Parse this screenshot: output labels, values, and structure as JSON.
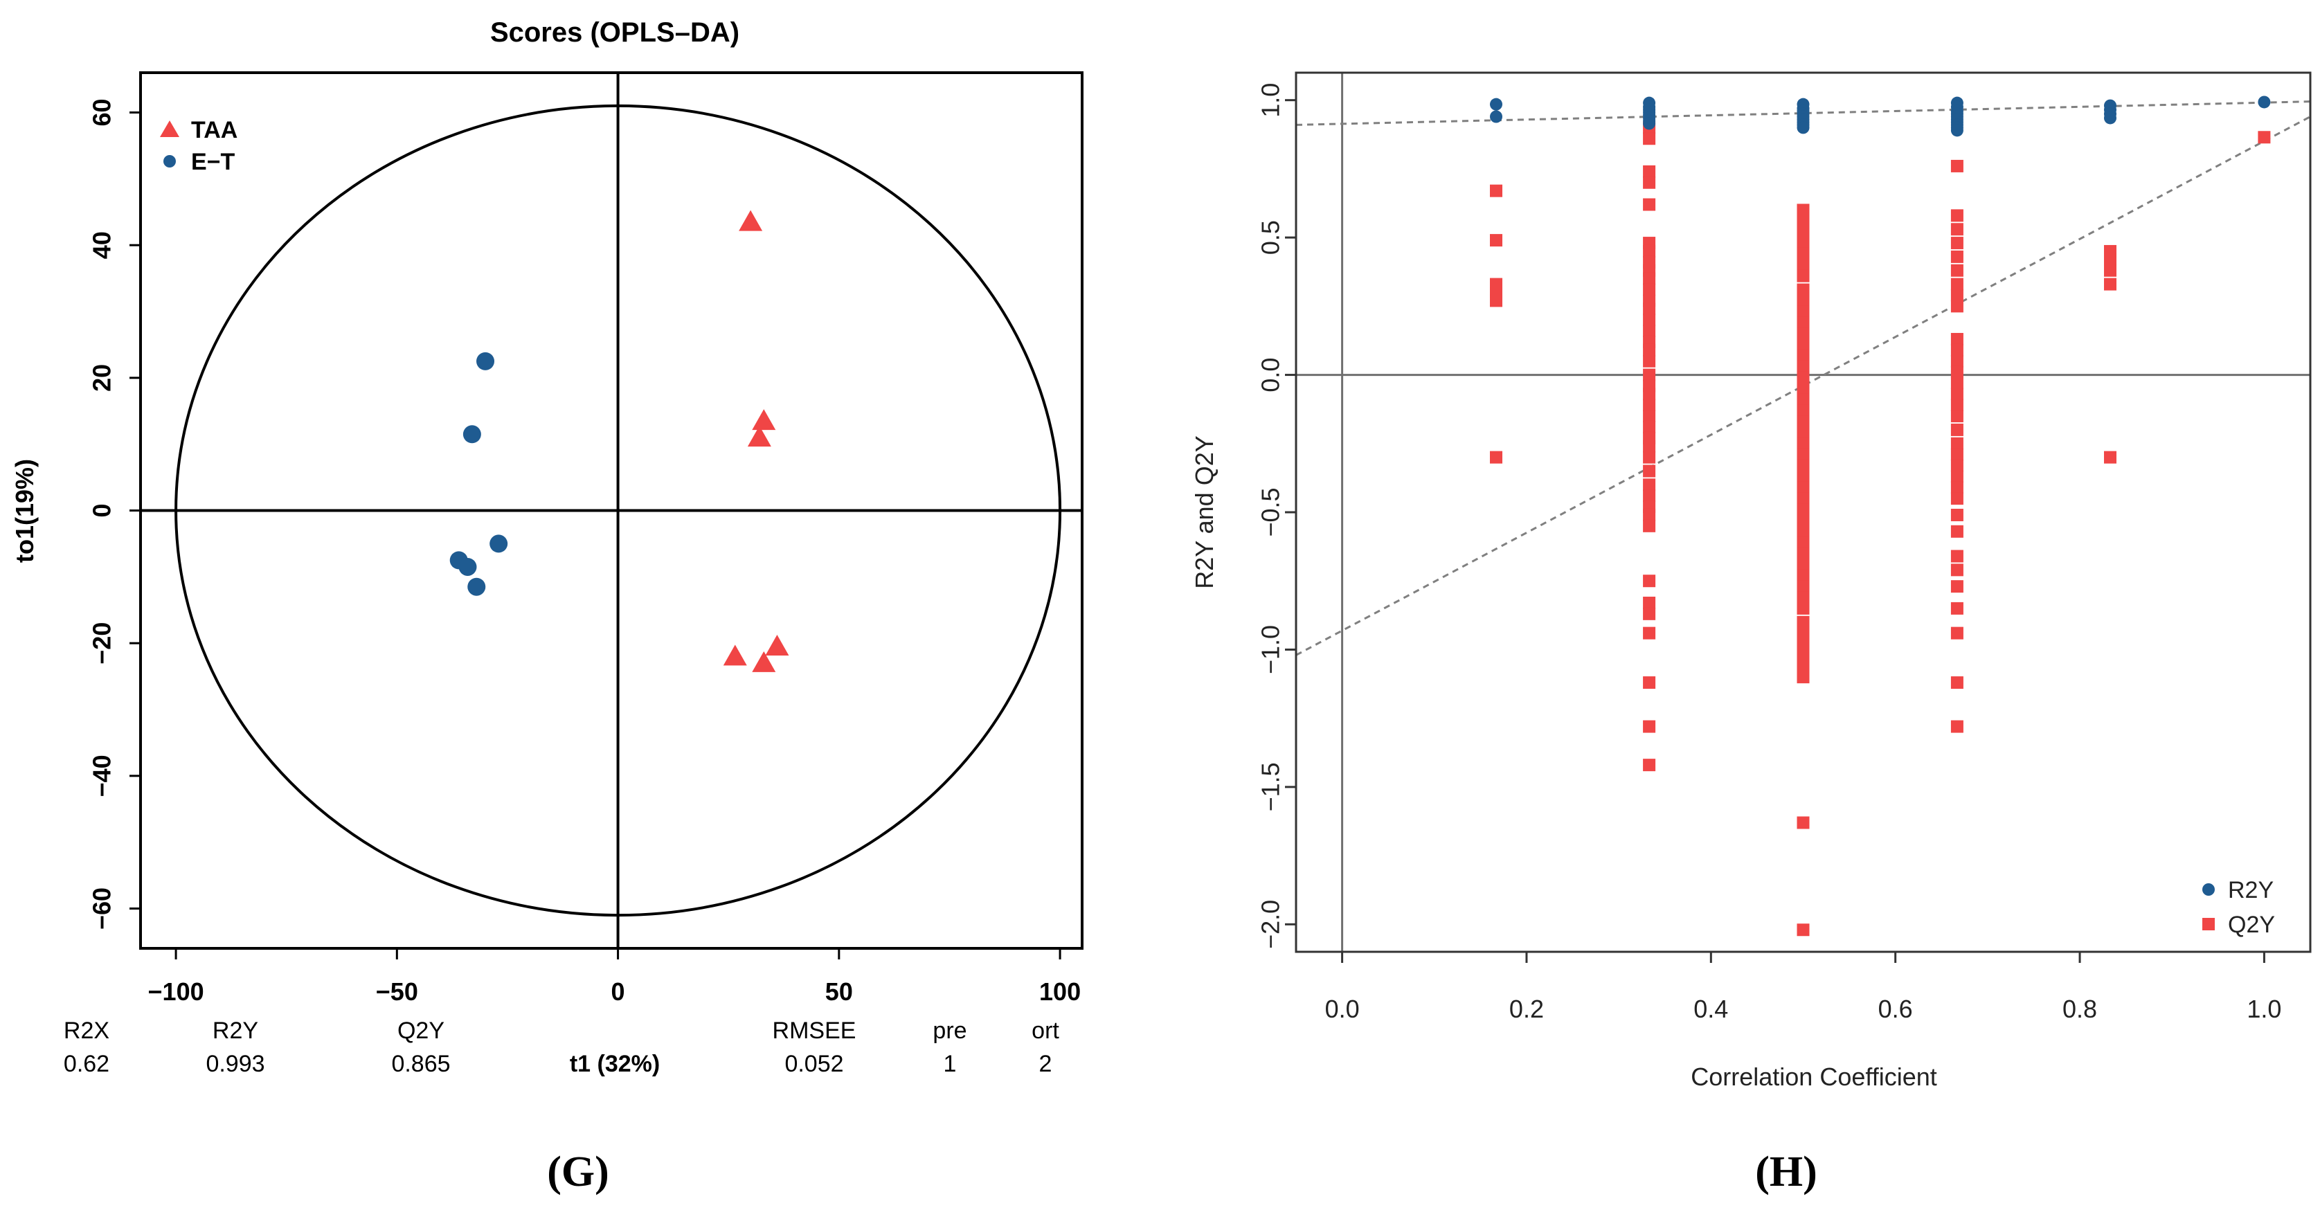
{
  "panel_labels": {
    "left": "(G)",
    "right": "(H)"
  },
  "colors": {
    "taa": "#f04545",
    "et": "#1f5b91",
    "r2y": "#1f5b91",
    "q2y": "#f04545",
    "dash": "#808080",
    "axis": "#000000",
    "ref": "#707070"
  },
  "chart_data": [
    {
      "type": "scatter",
      "title": "Scores (OPLS–DA)",
      "xlabel": "t1 (32%)",
      "ylabel": "to1(19%)",
      "xlim": [
        -108,
        105
      ],
      "ylim": [
        -66,
        66
      ],
      "xticks": [
        -100,
        -50,
        0,
        50,
        100
      ],
      "xtick_labels": [
        "−100",
        "−50",
        "0",
        "50",
        "100"
      ],
      "yticks": [
        -60,
        -40,
        -20,
        0,
        20,
        40,
        60
      ],
      "ytick_labels": [
        "−60",
        "−40",
        "−20",
        "0",
        "20",
        "40",
        "60"
      ],
      "ellipse": {
        "rx": 100,
        "ry": 61
      },
      "legend": {
        "position": "top-left",
        "entries": [
          "TAA",
          "E−T"
        ]
      },
      "series": [
        {
          "name": "TAA",
          "marker": "triangle",
          "points": [
            [
              30,
              43.5
            ],
            [
              33,
              13.5
            ],
            [
              32,
              11
            ],
            [
              36,
              -20.5
            ],
            [
              26.5,
              -22
            ],
            [
              33,
              -23
            ]
          ]
        },
        {
          "name": "E−T",
          "marker": "circle",
          "points": [
            [
              -30,
              22.5
            ],
            [
              -33,
              11.5
            ],
            [
              -27,
              -5
            ],
            [
              -36,
              -7.5
            ],
            [
              -34,
              -8.5
            ],
            [
              -32,
              -11.5
            ]
          ]
        }
      ],
      "stats": {
        "headers": [
          "R2X",
          "R2Y",
          "Q2Y",
          "RMSEE",
          "pre",
          "ort"
        ],
        "values": [
          "0.62",
          "0.993",
          "0.865",
          "0.052",
          "1",
          "2"
        ]
      }
    },
    {
      "type": "scatter",
      "title": "",
      "xlabel": "Correlation Coefficient",
      "ylabel": "R2Y and Q2Y",
      "xlim": [
        -0.05,
        1.05
      ],
      "ylim": [
        -2.1,
        1.1
      ],
      "xticks": [
        0.0,
        0.2,
        0.4,
        0.6,
        0.8,
        1.0
      ],
      "xtick_labels": [
        "0.0",
        "0.2",
        "0.4",
        "0.6",
        "0.8",
        "1.0"
      ],
      "yticks": [
        -2.0,
        -1.5,
        -1.0,
        -0.5,
        0.0,
        0.5,
        1.0
      ],
      "ytick_labels": [
        "−2.0",
        "−1.5",
        "−1.0",
        "−0.5",
        "0.0",
        "0.5",
        "1.0"
      ],
      "legend": {
        "position": "bottom-right",
        "entries": [
          "R2Y",
          "Q2Y"
        ]
      },
      "r2y_intercept_line": {
        "x": [
          -0.05,
          1.05
        ],
        "y": [
          0.91,
          0.995
        ]
      },
      "q2y_intercept_line": {
        "x": [
          -0.05,
          1.05
        ],
        "y": [
          -1.02,
          0.94
        ]
      },
      "series": [
        {
          "name": "R2Y",
          "marker": "circle",
          "groups": [
            {
              "x": 0.167,
              "values": [
                0.985,
                0.94
              ]
            },
            {
              "x": 0.333,
              "values": [
                0.99,
                0.975,
                0.965,
                0.955,
                0.945,
                0.935,
                0.925,
                0.915
              ]
            },
            {
              "x": 0.5,
              "values": [
                0.985,
                0.97,
                0.96,
                0.95,
                0.94,
                0.93,
                0.92,
                0.91,
                0.9
              ]
            },
            {
              "x": 0.667,
              "values": [
                0.99,
                0.975,
                0.96,
                0.95,
                0.94,
                0.93,
                0.92,
                0.91,
                0.9,
                0.89
              ]
            },
            {
              "x": 0.833,
              "values": [
                0.98,
                0.965,
                0.95,
                0.935
              ]
            },
            {
              "x": 1.0,
              "values": [
                0.993
              ]
            }
          ]
        },
        {
          "name": "Q2Y",
          "marker": "square",
          "groups": [
            {
              "x": 0.167,
              "values": [
                0.67,
                0.49,
                0.33,
                0.3,
                0.27,
                -0.3
              ]
            },
            {
              "x": 0.333,
              "values": [
                0.9,
                0.86,
                0.74,
                0.7,
                0.62,
                0.48,
                0.45,
                0.41,
                0.38,
                0.35,
                0.31,
                0.27,
                0.24,
                0.2,
                0.16,
                0.12,
                0.09,
                0.05,
                0.0,
                -0.04,
                -0.07,
                -0.11,
                -0.15,
                -0.19,
                -0.23,
                -0.26,
                -0.3,
                -0.35,
                -0.4,
                -0.44,
                -0.48,
                -0.51,
                -0.55,
                -0.75,
                -0.83,
                -0.87,
                -0.94,
                -1.12,
                -1.28,
                -1.42
              ]
            },
            {
              "x": 0.5,
              "values": [
                0.6,
                0.56,
                0.52,
                0.48,
                0.44,
                0.4,
                0.36,
                0.31,
                0.27,
                0.23,
                0.19,
                0.15,
                0.11,
                0.07,
                0.03,
                -0.01,
                -0.05,
                -0.09,
                -0.13,
                -0.17,
                -0.21,
                -0.25,
                -0.29,
                -0.33,
                -0.37,
                -0.41,
                -0.45,
                -0.49,
                -0.53,
                -0.57,
                -0.61,
                -0.65,
                -0.69,
                -0.73,
                -0.77,
                -0.81,
                -0.85,
                -0.9,
                -0.94,
                -0.98,
                -1.02,
                -1.06,
                -1.1,
                -1.63,
                -2.02
              ]
            },
            {
              "x": 0.667,
              "values": [
                0.76,
                0.58,
                0.53,
                0.48,
                0.43,
                0.38,
                0.33,
                0.29,
                0.25,
                0.13,
                0.09,
                0.05,
                0.01,
                -0.03,
                -0.07,
                -0.11,
                -0.15,
                -0.2,
                -0.25,
                -0.29,
                -0.33,
                -0.37,
                -0.41,
                -0.45,
                -0.51,
                -0.57,
                -0.66,
                -0.71,
                -0.77,
                -0.85,
                -0.94,
                -1.12,
                -1.28
              ]
            },
            {
              "x": 0.833,
              "values": [
                0.45,
                0.42,
                0.38,
                0.33,
                -0.3
              ]
            },
            {
              "x": 1.0,
              "values": [
                0.865
              ]
            }
          ]
        }
      ]
    }
  ]
}
